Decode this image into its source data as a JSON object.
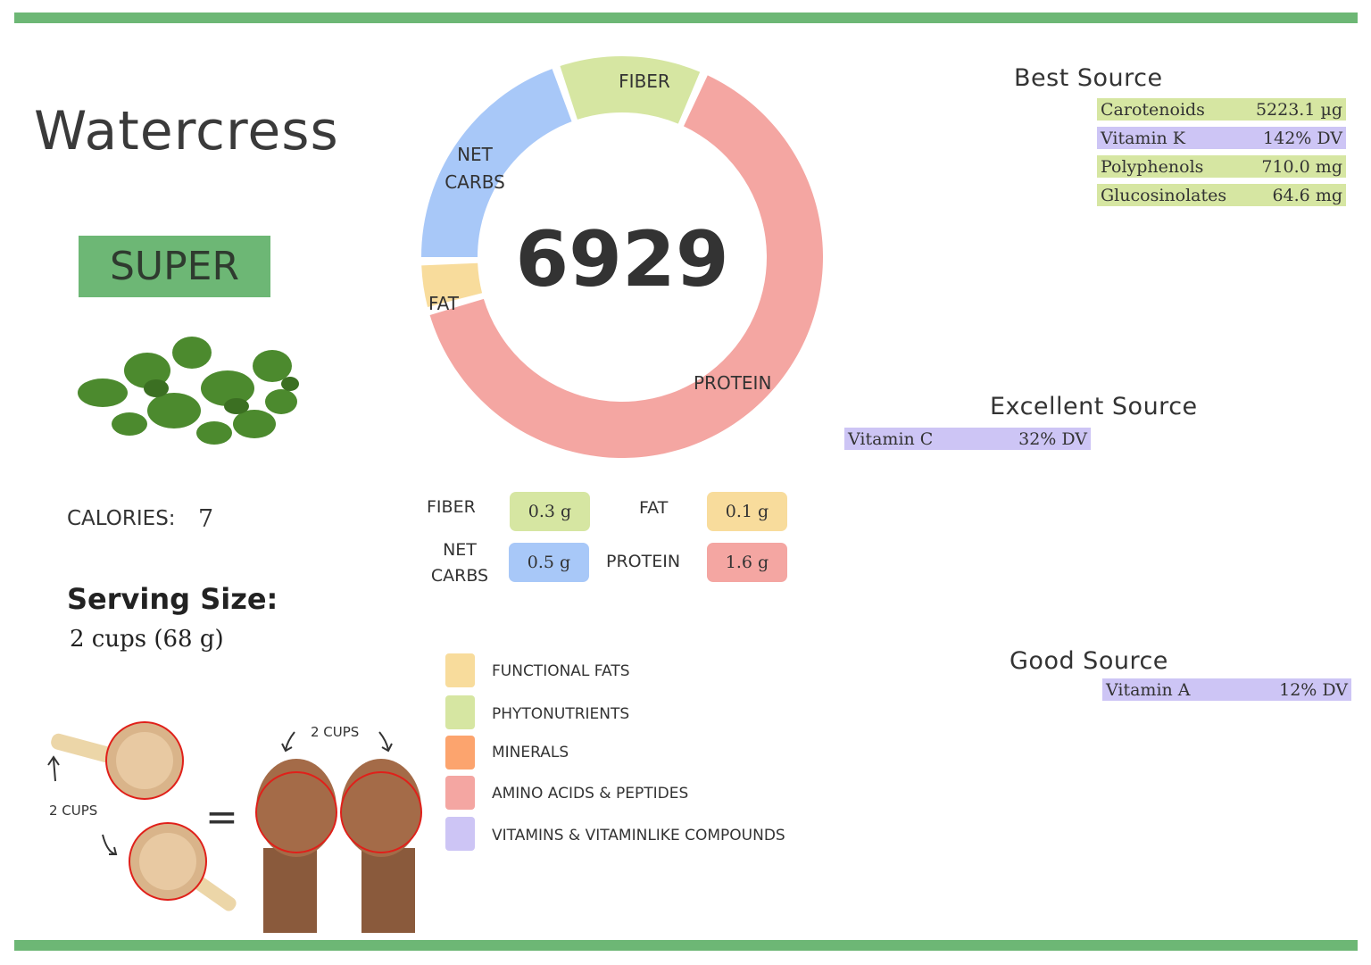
{
  "food": {
    "name": "Watercress",
    "rating": "SUPER",
    "calories_label": "CALORIES:",
    "calories_value": "7",
    "serving_label": "Serving Size:",
    "serving_value": "2 cups (68 g)"
  },
  "serving_illustration": {
    "cups_label_left": "2 CUPS",
    "cups_label_top": "2 CUPS",
    "equals": "="
  },
  "chart_data": {
    "type": "pie",
    "style": "donut",
    "center_label": "6929",
    "categories": [
      "PROTEIN",
      "FAT",
      "NET CARBS",
      "FIBER"
    ],
    "values": [
      1.6,
      0.1,
      0.5,
      0.3
    ],
    "unit": "g",
    "colors": [
      "#f4a6a2",
      "#f8dc9c",
      "#a8c8f8",
      "#d6e6a2"
    ]
  },
  "macros": [
    {
      "label": "FIBER",
      "value": "0.3 g",
      "color": "#d6e6a2"
    },
    {
      "label": "FAT",
      "value": "0.1 g",
      "color": "#f8dc9c"
    },
    {
      "label_line1": "NET",
      "label_line2": "CARBS",
      "value": "0.5 g",
      "color": "#a8c8f8"
    },
    {
      "label": "PROTEIN",
      "value": "1.6 g",
      "color": "#f4a6a2"
    }
  ],
  "legend": [
    {
      "label": "FUNCTIONAL  FATS",
      "color": "#f8dc9c"
    },
    {
      "label": "PHYTONUTRIENTS",
      "color": "#d6e6a2"
    },
    {
      "label": "MINERALS",
      "color": "#fca46e"
    },
    {
      "label": "AMINO ACIDS & PEPTIDES",
      "color": "#f4a6a2"
    },
    {
      "label": "VITAMINS & VITAMINLIKE COMPOUNDS",
      "color": "#cdc5f5"
    }
  ],
  "best_source": {
    "heading": "Best Source",
    "items": [
      {
        "name": "Carotenoids",
        "value": "5223.1 µg",
        "type": "phytonutrient"
      },
      {
        "name": "Vitamin K",
        "value": "142% DV",
        "type": "vitamin"
      },
      {
        "name": "Polyphenols",
        "value": "710.0 mg",
        "type": "phytonutrient"
      },
      {
        "name": "Glucosinolates",
        "value": "64.6 mg",
        "type": "phytonutrient"
      }
    ]
  },
  "excellent_source": {
    "heading": "Excellent Source",
    "items": [
      {
        "name": "Vitamin C",
        "value": "32% DV",
        "type": "vitamin"
      }
    ]
  },
  "good_source": {
    "heading": "Good Source",
    "items": [
      {
        "name": "Vitamin A",
        "value": "12% DV",
        "type": "vitamin"
      }
    ]
  },
  "accent_color": "#6db775"
}
